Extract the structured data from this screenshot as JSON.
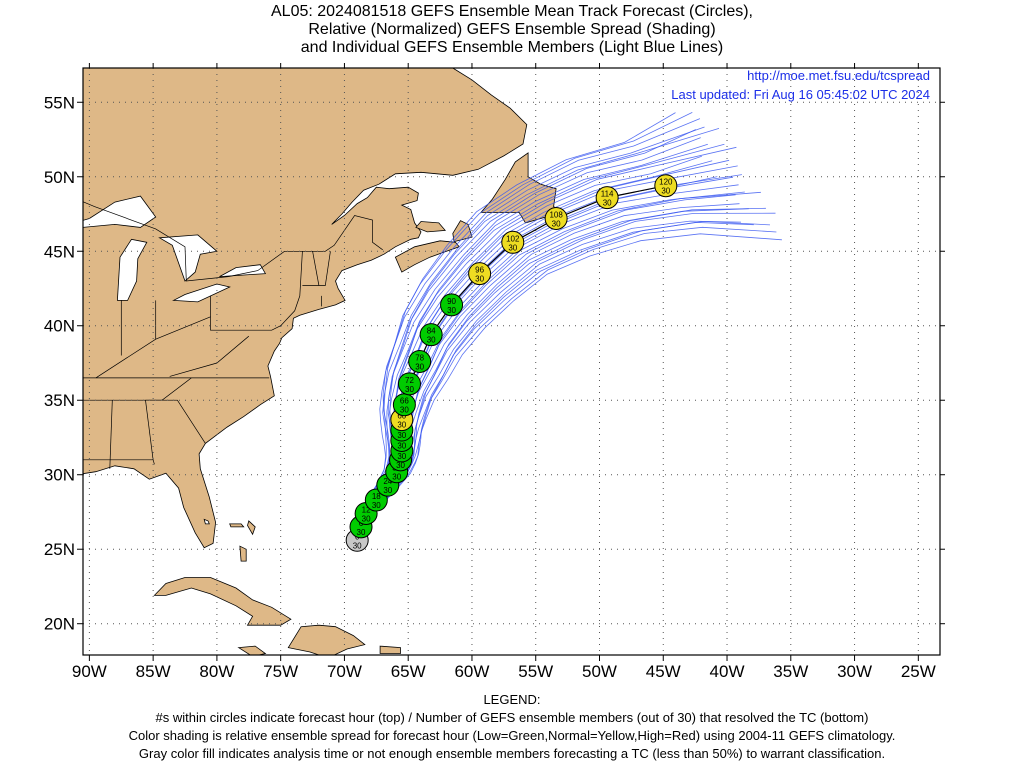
{
  "title": {
    "line1": "AL05: 2024081518 GEFS Ensemble Mean Track Forecast (Circles),",
    "line2": "Relative (Normalized) GEFS Ensemble Spread (Shading)",
    "line3": "and Individual GEFS Ensemble Members (Light Blue Lines)"
  },
  "source_url": "http://moe.met.fsu.edu/tcspread",
  "last_updated": "Last updated: Fri Aug 16 05:45:02 UTC 2024",
  "legend": {
    "heading": "LEGEND:",
    "line1": "#s within circles indicate forecast hour (top) / Number of GEFS ensemble members (out of 30) that resolved the TC (bottom)",
    "line2": "Color shading is relative ensemble spread for forecast hour (Low=Green,Normal=Yellow,High=Red) using 2004-11 GEFS climatology.",
    "line3": "Gray color fill indicates analysis time or not enough ensemble members forecasting a TC (less than 50%) to warrant classification."
  },
  "colors": {
    "land": "#deb887",
    "ocean": "#ffffff",
    "members": "#3d5af1",
    "mean_track": "#000000",
    "low_spread": "#00cc00",
    "normal_spread": "#eedd22",
    "analysis": "#c8c8c8"
  },
  "chart_data": {
    "type": "map",
    "projection": "equirectangular",
    "lon_range": [
      -90.5,
      -23.3
    ],
    "lat_range": [
      17.9,
      57.3
    ],
    "x_tick_labels": [
      "90W",
      "85W",
      "80W",
      "75W",
      "70W",
      "65W",
      "60W",
      "55W",
      "50W",
      "45W",
      "40W",
      "35W",
      "30W",
      "25W"
    ],
    "x_tick_lons": [
      -90,
      -85,
      -80,
      -75,
      -70,
      -65,
      -60,
      -55,
      -50,
      -45,
      -40,
      -35,
      -30,
      -25
    ],
    "y_tick_labels": [
      "20N",
      "25N",
      "30N",
      "35N",
      "40N",
      "45N",
      "50N",
      "55N"
    ],
    "y_tick_lats": [
      20,
      25,
      30,
      35,
      40,
      45,
      50,
      55
    ],
    "gridlines": true,
    "mean_track": [
      {
        "hour": "0",
        "members": "30",
        "lon": -69.0,
        "lat": 25.6,
        "spread": "analysis"
      },
      {
        "hour": "6",
        "members": "30",
        "lon": -68.7,
        "lat": 26.5,
        "spread": "low"
      },
      {
        "hour": "12",
        "members": "30",
        "lon": -68.3,
        "lat": 27.4,
        "spread": "low"
      },
      {
        "hour": "18",
        "members": "30",
        "lon": -67.5,
        "lat": 28.3,
        "spread": "low"
      },
      {
        "hour": "24",
        "members": "30",
        "lon": -66.6,
        "lat": 29.3,
        "spread": "low"
      },
      {
        "hour": "30",
        "members": "30",
        "lon": -65.9,
        "lat": 30.2,
        "spread": "low"
      },
      {
        "hour": "36",
        "members": "30",
        "lon": -65.6,
        "lat": 31.0,
        "spread": "low"
      },
      {
        "hour": "42",
        "members": "30",
        "lon": -65.5,
        "lat": 31.6,
        "spread": "low"
      },
      {
        "hour": "48",
        "members": "30",
        "lon": -65.5,
        "lat": 32.3,
        "spread": "low"
      },
      {
        "hour": "54",
        "members": "30",
        "lon": -65.5,
        "lat": 33.0,
        "spread": "low"
      },
      {
        "hour": "60",
        "members": "30",
        "lon": -65.5,
        "lat": 33.7,
        "spread": "normal"
      },
      {
        "hour": "66",
        "members": "30",
        "lon": -65.3,
        "lat": 34.7,
        "spread": "low"
      },
      {
        "hour": "72",
        "members": "30",
        "lon": -64.9,
        "lat": 36.1,
        "spread": "low"
      },
      {
        "hour": "78",
        "members": "30",
        "lon": -64.1,
        "lat": 37.6,
        "spread": "low"
      },
      {
        "hour": "84",
        "members": "30",
        "lon": -63.2,
        "lat": 39.4,
        "spread": "low"
      },
      {
        "hour": "90",
        "members": "30",
        "lon": -61.6,
        "lat": 41.4,
        "spread": "low"
      },
      {
        "hour": "96",
        "members": "30",
        "lon": -59.4,
        "lat": 43.5,
        "spread": "normal"
      },
      {
        "hour": "102",
        "members": "30",
        "lon": -56.8,
        "lat": 45.6,
        "spread": "normal"
      },
      {
        "hour": "108",
        "members": "30",
        "lon": -53.4,
        "lat": 47.2,
        "spread": "normal"
      },
      {
        "hour": "114",
        "members": "30",
        "lon": -49.4,
        "lat": 48.6,
        "spread": "normal"
      },
      {
        "hour": "120",
        "members": "30",
        "lon": -44.8,
        "lat": 49.4,
        "spread": "normal"
      }
    ]
  }
}
